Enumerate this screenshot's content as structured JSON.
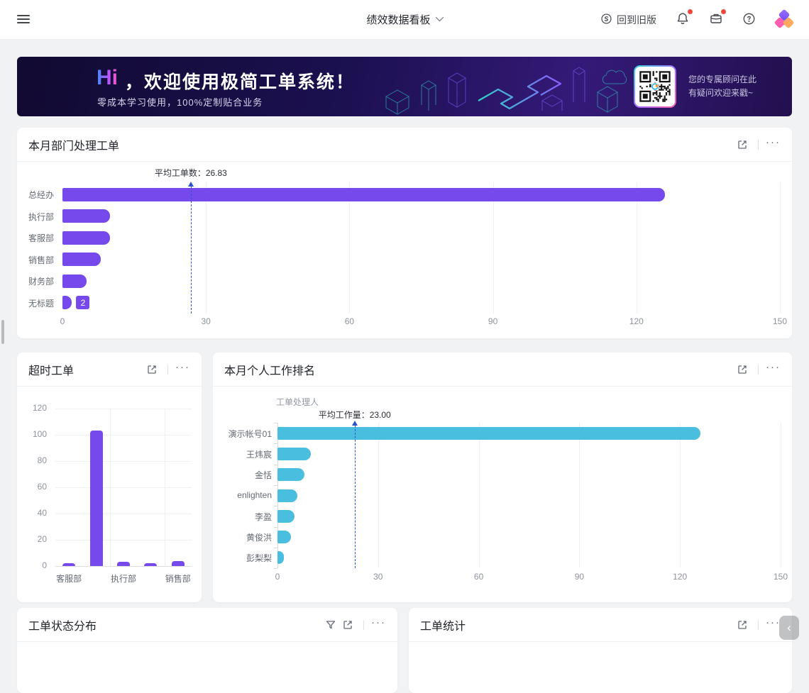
{
  "header": {
    "title": "绩效数据看板",
    "back": "回到旧版"
  },
  "banner": {
    "hi": "Hi",
    "title": "，欢迎使用极简工单系统！",
    "subtitle": "零成本学习使用，100%定制贴合业务",
    "qr_line1": "您的专属顾问在此",
    "qr_line2": "有疑问欢迎来戳~"
  },
  "cards": {
    "dept_title": "本月部门处理工单",
    "overtime_title": "超时工单",
    "personal_title": "本月个人工作排名",
    "status_title": "工单状态分布",
    "stats_title": "工单统计",
    "more_label": "···"
  },
  "colors": {
    "purple": "#7649ec",
    "cyan": "#49bede",
    "average_line_blue": "#2d53cc",
    "notification_red": "#f0483e"
  },
  "chart_data": {
    "dept": {
      "type": "bar",
      "orientation": "horizontal",
      "title": "本月部门处理工单",
      "categories": [
        "总经办",
        "执行部",
        "客服部",
        "销售部",
        "财务部",
        "无标题"
      ],
      "values": [
        126,
        10,
        10,
        8,
        5,
        2
      ],
      "xlim": [
        0,
        150
      ],
      "xticks": [
        0,
        30,
        60,
        90,
        120,
        150
      ],
      "bar_color": "#7649ec",
      "grid": true,
      "average_line": {
        "value": 26.83,
        "label": "平均工单数：26.83"
      },
      "data_labels": [
        {
          "category": "无标题",
          "text": "2"
        }
      ]
    },
    "overtime": {
      "type": "bar",
      "orientation": "vertical",
      "title": "超时工单",
      "categories": [
        "客服部",
        "",
        "执行部",
        "",
        "销售部"
      ],
      "values": [
        2,
        103,
        3,
        2,
        4
      ],
      "ylim": [
        0,
        120
      ],
      "yticks": [
        0,
        20,
        40,
        60,
        80,
        100,
        120
      ],
      "bar_color": "#7649ec",
      "grid": true
    },
    "personal": {
      "type": "bar",
      "orientation": "horizontal",
      "title": "本月个人工作排名",
      "axis_name": "工单处理人",
      "categories": [
        "演示帐号01",
        "王炜宸",
        "金恬",
        "enlighten",
        "李盈",
        "黄俊洪",
        "彭梨梨"
      ],
      "values": [
        126,
        10,
        8,
        6,
        5,
        4,
        2
      ],
      "xlim": [
        0,
        150
      ],
      "xticks": [
        0,
        30,
        60,
        90,
        120,
        150
      ],
      "bar_color": "#49bede",
      "grid": true,
      "average_line": {
        "value": 23,
        "label": "平均工作量：23.00"
      }
    }
  }
}
